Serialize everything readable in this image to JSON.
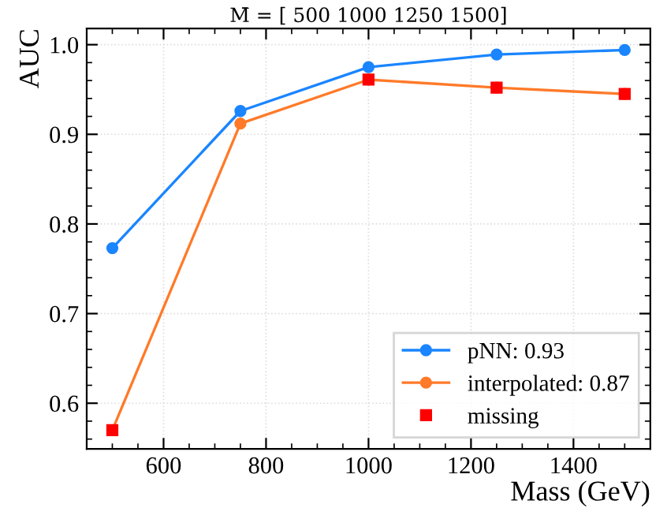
{
  "chart_data": {
    "type": "line",
    "title": "M̄ = [ 500 1000 1250 1500]",
    "xlabel": "Mass (GeV)",
    "ylabel": "AUC",
    "x": [
      500,
      750,
      1000,
      1250,
      1500
    ],
    "series": [
      {
        "name": "pNN: 0.93",
        "color": "#1a85ff",
        "marker": "circle",
        "values": [
          0.773,
          0.926,
          0.975,
          0.989,
          0.994
        ]
      },
      {
        "name": "interpolated: 0.87",
        "color": "#ff7a29",
        "marker": "circle",
        "values": [
          0.57,
          0.912,
          0.961,
          0.952,
          0.945
        ]
      },
      {
        "name": "missing",
        "type": "scatter",
        "color": "#ff0000",
        "marker": "square",
        "x": [
          500,
          1000,
          1250,
          1500
        ],
        "values": [
          0.57,
          0.961,
          0.952,
          0.945
        ]
      }
    ],
    "xlim": [
      450,
      1550
    ],
    "ylim": [
      0.549,
      1.018
    ],
    "xticks": [
      600,
      800,
      1000,
      1200,
      1400
    ],
    "yticks": [
      0.6,
      0.7,
      0.8,
      0.9,
      {
        "value": 1.0,
        "label": "1.0"
      }
    ],
    "grid": true,
    "legend": "bottom right"
  }
}
